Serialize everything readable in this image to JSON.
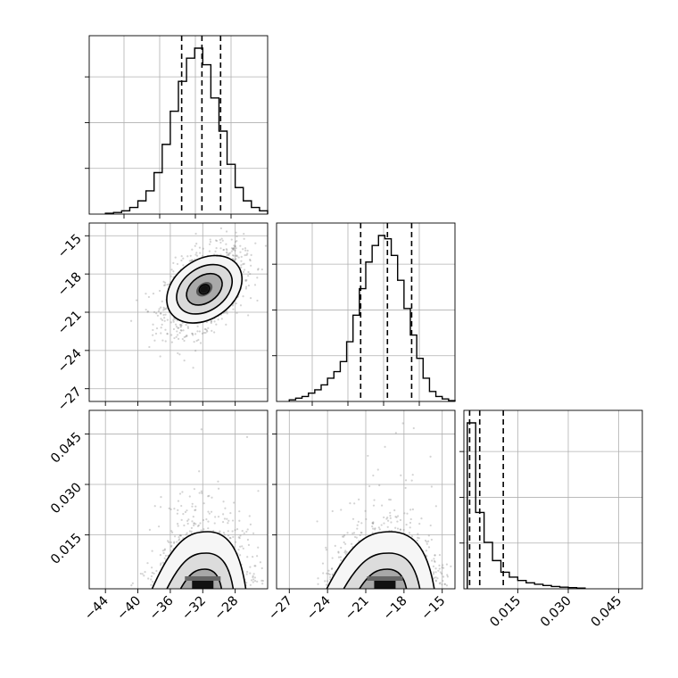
{
  "chart_data": [
    {
      "type": "histogram",
      "panel": "diag-a",
      "xlim": [
        -46,
        -24
      ],
      "x_bins": [
        -44,
        -43,
        -42,
        -41,
        -40,
        -39,
        -38,
        -37,
        -36,
        -35,
        -34,
        -33,
        -32,
        -31,
        -30,
        -29,
        -28,
        -27,
        -26,
        -25,
        -24
      ],
      "counts": [
        0.005,
        0.01,
        0.02,
        0.04,
        0.08,
        0.14,
        0.25,
        0.42,
        0.62,
        0.8,
        0.94,
        1.0,
        0.9,
        0.7,
        0.5,
        0.3,
        0.16,
        0.08,
        0.04,
        0.02
      ],
      "quantiles": [
        -34.6,
        -32.1,
        -29.8
      ],
      "grid": true,
      "tick_labels": []
    },
    {
      "type": "histogram",
      "panel": "diag-b",
      "xlim": [
        -28,
        -14
      ],
      "x_bins": [
        -27,
        -26.5,
        -26,
        -25.5,
        -25,
        -24.5,
        -24,
        -23.5,
        -23,
        -22.5,
        -22,
        -21.5,
        -21,
        -20.5,
        -20,
        -19.5,
        -19,
        -18.5,
        -18,
        -17.5,
        -17,
        -16.5,
        -16,
        -15.5,
        -15,
        -14.5,
        -14
      ],
      "counts": [
        0.01,
        0.02,
        0.03,
        0.05,
        0.07,
        0.1,
        0.14,
        0.18,
        0.24,
        0.36,
        0.52,
        0.68,
        0.84,
        0.94,
        1.0,
        0.98,
        0.88,
        0.73,
        0.56,
        0.4,
        0.26,
        0.14,
        0.06,
        0.03,
        0.015,
        0.005
      ],
      "quantiles": [
        -21.4,
        -19.3,
        -17.4
      ],
      "grid": true,
      "tick_labels": []
    },
    {
      "type": "histogram",
      "panel": "diag-c",
      "xlim": [
        -0.001,
        0.052
      ],
      "x_bins": [
        0,
        0.0025,
        0.005,
        0.0075,
        0.01,
        0.0125,
        0.015,
        0.0175,
        0.02,
        0.0225,
        0.025,
        0.0275,
        0.03,
        0.0325,
        0.035
      ],
      "counts": [
        1.0,
        0.46,
        0.28,
        0.17,
        0.1,
        0.07,
        0.05,
        0.036,
        0.027,
        0.02,
        0.014,
        0.01,
        0.007,
        0.004
      ],
      "quantiles": [
        0.0007,
        0.0037,
        0.0107
      ],
      "grid": true,
      "xtick_labels": [
        "0.015",
        "0.030",
        "0.045"
      ],
      "xticks": [
        0.015,
        0.03,
        0.045
      ]
    },
    {
      "type": "scatter-contour",
      "panel": "mid-left",
      "xlim": [
        -46,
        -24
      ],
      "ylim": [
        -28,
        -14
      ],
      "center": [
        -31.8,
        -19.2
      ],
      "spread": [
        2.4,
        1.6
      ],
      "correlation": 0.45,
      "levels": [
        1.2,
        0.8,
        0.5,
        0.2
      ],
      "ytick_labels": [
        "−15",
        "−18",
        "−21",
        "−24",
        "−27"
      ],
      "yticks": [
        -15,
        -18,
        -21,
        -24,
        -27
      ],
      "grid": true
    },
    {
      "type": "scatter-contour",
      "panel": "bottom-left",
      "xlim": [
        -46,
        -24
      ],
      "ylim": [
        -0.001,
        0.052
      ],
      "center": [
        -32,
        0.0035
      ],
      "xtick_labels": [
        "−44",
        "−40",
        "−36",
        "−32",
        "−28"
      ],
      "xticks": [
        -44,
        -40,
        -36,
        -32,
        -28
      ],
      "ytick_labels": [
        "0.045",
        "0.030",
        "0.015"
      ],
      "yticks": [
        0.045,
        0.03,
        0.015
      ],
      "grid": true
    },
    {
      "type": "scatter-contour",
      "panel": "bottom-mid",
      "xlim": [
        -28,
        -14
      ],
      "ylim": [
        -0.001,
        0.052
      ],
      "center": [
        -19.5,
        0.0035
      ],
      "xtick_labels": [
        "−27",
        "−24",
        "−21",
        "−18",
        "−15"
      ],
      "xticks": [
        -27,
        -24,
        -21,
        -18,
        -15
      ],
      "grid": true
    }
  ]
}
